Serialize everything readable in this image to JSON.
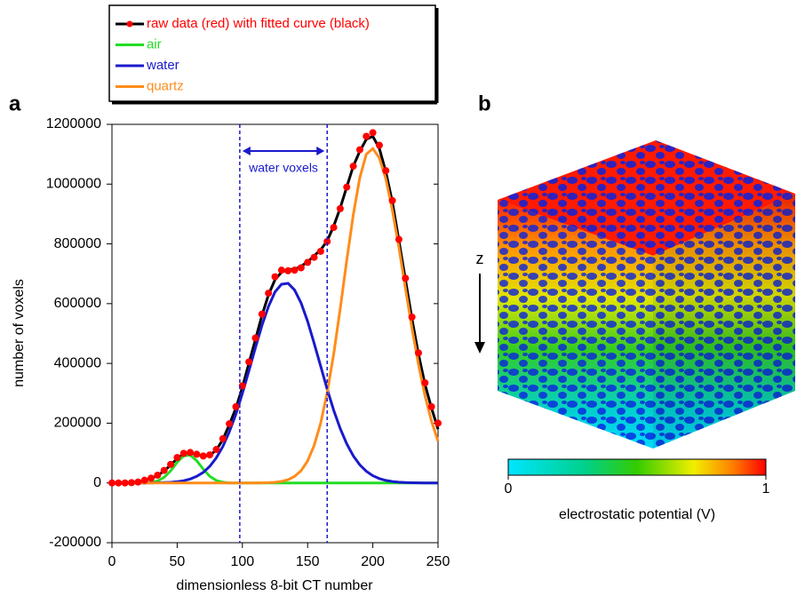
{
  "chart_data": {
    "type": "line",
    "panel_label": "a",
    "xlabel": "dimensionless 8-bit CT number",
    "ylabel": "number of voxels",
    "xlim": [
      0,
      250
    ],
    "xticks": [
      0,
      50,
      100,
      150,
      200,
      250
    ],
    "ylim": [
      -200000,
      1200000
    ],
    "yticks": [
      -200000,
      0,
      200000,
      400000,
      600000,
      800000,
      1000000,
      1200000
    ],
    "grid": false,
    "x": [
      0,
      5,
      10,
      15,
      20,
      25,
      30,
      35,
      40,
      45,
      50,
      55,
      60,
      65,
      70,
      75,
      80,
      85,
      90,
      95,
      100,
      105,
      110,
      115,
      120,
      125,
      130,
      135,
      140,
      145,
      150,
      155,
      160,
      165,
      170,
      175,
      180,
      185,
      190,
      195,
      200,
      205,
      210,
      215,
      220,
      225,
      230,
      235,
      240,
      245,
      250
    ],
    "series": [
      {
        "name": "raw data (red) with fitted curve (black)",
        "color": "#ff0000",
        "fit_color": "#000000",
        "marker": true,
        "values": [
          0,
          0,
          0,
          1000,
          3000,
          9000,
          16000,
          26000,
          42000,
          62000,
          85000,
          99000,
          102000,
          96000,
          90000,
          94000,
          112000,
          148000,
          198000,
          255000,
          325000,
          405000,
          485000,
          565000,
          635000,
          690000,
          712000,
          710000,
          712000,
          720000,
          738000,
          755000,
          775000,
          808000,
          855000,
          918000,
          990000,
          1060000,
          1115000,
          1160000,
          1172000,
          1130000,
          1045000,
          945000,
          815000,
          685000,
          555000,
          435000,
          335000,
          255000,
          200000
        ],
        "fit": [
          0,
          0,
          0,
          1000,
          3000,
          8000,
          15000,
          25000,
          40000,
          60000,
          82000,
          97000,
          100000,
          95000,
          90000,
          92000,
          110000,
          145000,
          195000,
          250000,
          320000,
          400000,
          480000,
          560000,
          630000,
          680000,
          705000,
          715000,
          715000,
          725000,
          740000,
          760000,
          780000,
          810000,
          860000,
          920000,
          990000,
          1060000,
          1110000,
          1150000,
          1160000,
          1120000,
          1040000,
          940000,
          810000,
          680000,
          550000,
          430000,
          330000,
          250000,
          180000
        ]
      },
      {
        "name": "air",
        "color": "#22dd22",
        "values": [
          0,
          0,
          0,
          0,
          0,
          0,
          1900,
          6700,
          18800,
          40800,
          69000,
          90800,
          93100,
          74400,
          46200,
          22400,
          8500,
          2500,
          0,
          0,
          0,
          0,
          0,
          0,
          0,
          0,
          0,
          0,
          0,
          0,
          0,
          0,
          0,
          0,
          0,
          0,
          0,
          0,
          0,
          0,
          0,
          0,
          0,
          0,
          0,
          0,
          0,
          0,
          0,
          0,
          0
        ]
      },
      {
        "name": "water",
        "color": "#1a1acc",
        "values": [
          0,
          0,
          0,
          0,
          0,
          0,
          260,
          550,
          1100,
          2200,
          4100,
          7400,
          13000,
          21900,
          35500,
          55600,
          83800,
          122000,
          171000,
          230000,
          300000,
          375000,
          453000,
          527000,
          591000,
          639000,
          665000,
          668000,
          646000,
          602000,
          541000,
          468000,
          391000,
          314000,
          243000,
          182000,
          131000,
          90700,
          60800,
          39000,
          24200,
          14500,
          8400,
          4650,
          2480,
          1270,
          620,
          290,
          130,
          55,
          20
        ]
      },
      {
        "name": "quartz",
        "color": "#ff8c1a",
        "values": [
          0,
          0,
          0,
          0,
          0,
          0,
          0,
          0,
          0,
          0,
          0,
          0,
          0,
          0,
          0,
          0,
          0,
          0,
          0,
          0,
          0,
          0,
          140,
          375,
          940,
          2250,
          5050,
          10800,
          21600,
          41000,
          73600,
          125000,
          200000,
          302000,
          432000,
          583000,
          744000,
          897000,
          1021000,
          1100000,
          1119000,
          1088000,
          1017000,
          913000,
          787000,
          652000,
          519000,
          397000,
          292000,
          206000,
          140000
        ]
      }
    ],
    "vlines": [
      98,
      165
    ],
    "vline_color": "#1a1acc",
    "annotations": [
      {
        "text": "water voxels"
      }
    ]
  },
  "panel_b": {
    "label": "b",
    "axis_label": "z",
    "colorbar": {
      "lim": [
        0,
        1
      ],
      "ticks": [
        0,
        1
      ],
      "label": "electrostatic potential (V)"
    }
  }
}
